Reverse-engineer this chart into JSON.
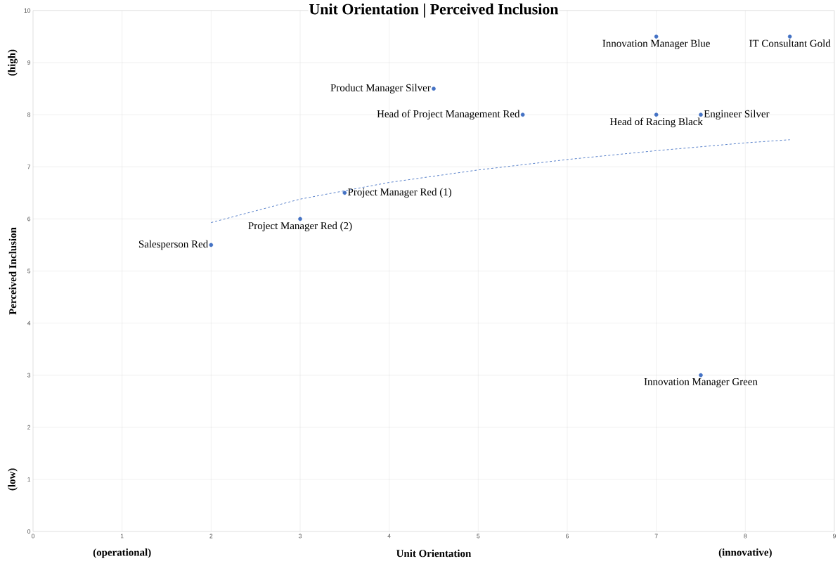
{
  "chart_data": {
    "type": "scatter",
    "title": "Unit Orientation | Perceived Inclusion",
    "xlabel": "Unit Orientation",
    "ylabel": "Perceived Inclusion",
    "xlim": [
      0,
      9
    ],
    "xticks": [
      0,
      1,
      2,
      3,
      4,
      5,
      6,
      7,
      8,
      9
    ],
    "ylim": [
      0,
      10
    ],
    "yticks": [
      0,
      1,
      2,
      3,
      4,
      5,
      6,
      7,
      8,
      9,
      10
    ],
    "grid": true,
    "marker": "circle",
    "series": [
      {
        "color": "#4472c4",
        "x": [
          2,
          3,
          3.5,
          4.5,
          5.5,
          7,
          8.5,
          7,
          7.5,
          7.5
        ],
        "values": [
          5.5,
          6,
          6.5,
          8.5,
          8,
          9.5,
          9.5,
          8,
          8,
          3
        ]
      },
      {
        "type": "line",
        "color": "#4472c4",
        "line_style": "dashed",
        "marker": "none",
        "x": [
          2,
          3,
          4,
          5,
          6,
          7,
          8,
          8.5
        ],
        "values": [
          5.93,
          6.38,
          6.7,
          6.94,
          7.14,
          7.31,
          7.46,
          7.52
        ]
      }
    ],
    "annotations": [
      {
        "text": "Salesperson Red",
        "x": 2,
        "y": 5.5
      },
      {
        "text": "Project Manager Red (2)",
        "x": 3,
        "y": 6
      },
      {
        "text": "Project Manager Red (1)",
        "x": 3.5,
        "y": 6.5
      },
      {
        "text": "Product Manager Silver",
        "x": 4.5,
        "y": 8.5
      },
      {
        "text": "Head of Project Management Red",
        "x": 5.5,
        "y": 8
      },
      {
        "text": "Innovation Manager Blue",
        "x": 7,
        "y": 9.5
      },
      {
        "text": "IT Consultant Gold",
        "x": 8.5,
        "y": 9.5
      },
      {
        "text": "Head of Racing Black",
        "x": 7,
        "y": 8
      },
      {
        "text": "Engineer Silver",
        "x": 7.5,
        "y": 8
      },
      {
        "text": "Innovation Manager Green",
        "x": 7.5,
        "y": 3
      },
      "(operational)",
      "(innovative)",
      "(high)",
      "(low)"
    ]
  }
}
